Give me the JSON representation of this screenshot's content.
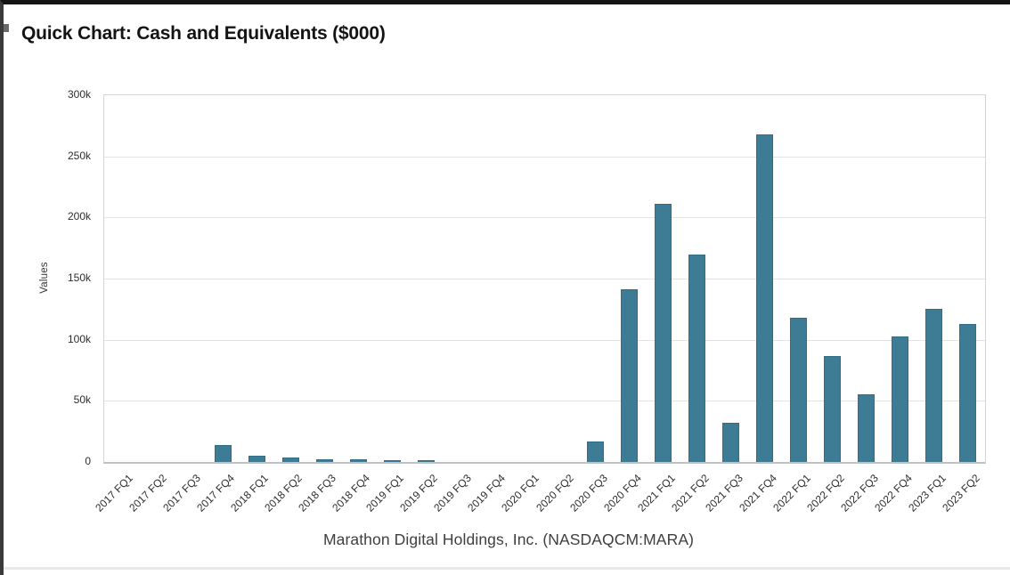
{
  "header": {
    "title": "Quick Chart: Cash and Equivalents ($000)"
  },
  "caption": "Marathon Digital Holdings, Inc. (NASDAQCM:MARA)",
  "chart_data": {
    "type": "bar",
    "title": "Quick Chart: Cash and Equivalents ($000)",
    "series_name": "Cash and Equivalents ($000)",
    "categories": [
      "2017 FQ1",
      "2017 FQ2",
      "2017 FQ3",
      "2017 FQ4",
      "2018 FQ1",
      "2018 FQ2",
      "2018 FQ3",
      "2018 FQ4",
      "2019 FQ1",
      "2019 FQ2",
      "2019 FQ3",
      "2019 FQ4",
      "2020 FQ1",
      "2020 FQ2",
      "2020 FQ3",
      "2020 FQ4",
      "2021 FQ1",
      "2021 FQ2",
      "2021 FQ3",
      "2021 FQ4",
      "2022 FQ1",
      "2022 FQ2",
      "2022 FQ3",
      "2022 FQ4",
      "2023 FQ1",
      "2023 FQ2"
    ],
    "values": [
      0,
      0,
      0,
      14000,
      5000,
      4000,
      2500,
      2500,
      1500,
      1500,
      0,
      0,
      0,
      0,
      17000,
      141000,
      211000,
      170000,
      32000,
      268000,
      118000,
      87000,
      55000,
      103000,
      125000,
      113000
    ],
    "xlabel": "Marathon Digital Holdings, Inc. (NASDAQCM:MARA)",
    "ylabel": "Values",
    "ylim": [
      0,
      300000
    ],
    "ytick_values": [
      0,
      50000,
      100000,
      150000,
      200000,
      250000,
      300000
    ],
    "ytick_labels": [
      "0",
      "50k",
      "100k",
      "150k",
      "200k",
      "250k",
      "300k"
    ],
    "grid": true,
    "legend_position": "none",
    "bar_color": "#3e7b94"
  }
}
